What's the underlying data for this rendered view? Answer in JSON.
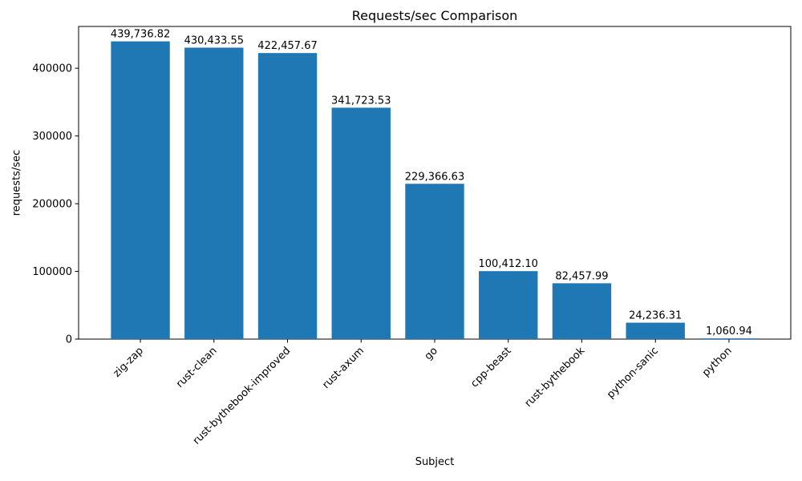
{
  "figure": {
    "background": "#ffffff",
    "text_color": "#000000",
    "spine_color": "#000000"
  },
  "chart_data": {
    "type": "bar",
    "title": "Requests/sec Comparison",
    "xlabel": "Subject",
    "ylabel": "requests/sec",
    "categories": [
      "zig-zap",
      "rust-clean",
      "rust-bythebook-improved",
      "rust-axum",
      "go",
      "cpp-beast",
      "rust-bythebook",
      "python-sanic",
      "python"
    ],
    "values": [
      439736.82,
      430433.55,
      422457.67,
      341723.53,
      229366.63,
      100412.1,
      82457.99,
      24236.31,
      1060.94
    ],
    "value_labels": [
      "439,736.82",
      "430,433.55",
      "422,457.67",
      "341,723.53",
      "229,366.63",
      "100,412.10",
      "82,457.99",
      "24,236.31",
      "1,060.94"
    ],
    "bar_color": "#1f77b4",
    "bar_width_fraction": 0.8,
    "yticks": [
      0,
      100000,
      200000,
      300000,
      400000
    ],
    "ytick_labels": [
      "0",
      "100000",
      "200000",
      "300000",
      "400000"
    ],
    "ylim": [
      0,
      461724
    ],
    "grid": false,
    "legend": null,
    "x_tick_rotation": 45
  }
}
